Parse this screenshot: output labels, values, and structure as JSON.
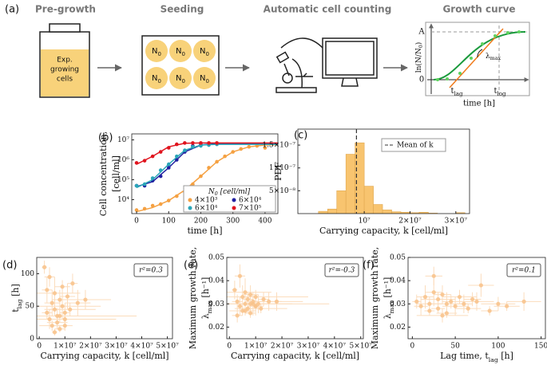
{
  "diagram": {
    "label": "(a)",
    "steps": [
      "Pre-growth",
      "Seeding",
      "Automatic cell counting",
      "Growth curve"
    ],
    "bottle_text": [
      "Exp.",
      "growing",
      "cells"
    ],
    "wells": [
      [
        "N",
        "0"
      ],
      [
        "N",
        "0"
      ],
      [
        "N",
        "0"
      ],
      [
        "N",
        "0"
      ],
      [
        "N",
        "0"
      ],
      [
        "N",
        "0"
      ]
    ],
    "curve": {
      "ylabel": [
        "ln(N/N",
        "0",
        ")"
      ],
      "xlabel": "time [h]",
      "top": "A",
      "zero": "0",
      "t_lag": [
        "t",
        "lag"
      ],
      "t_log": [
        "t",
        "log"
      ],
      "slope": [
        "λ",
        "max"
      ]
    }
  },
  "chart_data": [
    {
      "type": "line",
      "label": "(b)",
      "xlabel": "time [h]",
      "ylabel": [
        "Cell concentration,",
        "[cell/ml]"
      ],
      "xlim": [
        -15,
        440
      ],
      "xticks": [
        0,
        100,
        200,
        300,
        400
      ],
      "ylog": true,
      "ylim": [
        2000,
        20000000
      ],
      "yticks": [
        {
          "value": 10000,
          "label": "10⁴"
        },
        {
          "value": 100000,
          "label": "10⁵"
        },
        {
          "value": 1000000,
          "label": "10⁶"
        },
        {
          "value": 10000000,
          "label": "10⁷"
        }
      ],
      "legend_title": [
        "N",
        "0",
        " [cell/ml]"
      ],
      "fit_x": [
        0,
        50,
        100,
        150,
        200,
        250,
        300,
        350,
        400,
        450
      ],
      "series": [
        {
          "name": "4×10³",
          "color": "#f5a142",
          "x": [
            0,
            25,
            50,
            75,
            100,
            125,
            150,
            175,
            200,
            225,
            250,
            275,
            300,
            325,
            350,
            375,
            400
          ],
          "values": [
            3000,
            3500,
            5000,
            6000,
            9000,
            15000,
            25000,
            60000,
            150000,
            400000,
            800000,
            1500000,
            2500000,
            3500000,
            4500000,
            5000000,
            4000000
          ],
          "fit": [
            2500,
            4000,
            9000,
            30000,
            150000,
            800000,
            2500000,
            4500000,
            5500000,
            5800000
          ]
        },
        {
          "name": "6×10⁴",
          "color": "#1f1fa0",
          "x": [
            0,
            25,
            50,
            75,
            100,
            125,
            150,
            175,
            200
          ],
          "values": [
            50000,
            50000,
            90000,
            150000,
            400000,
            1000000,
            2500000,
            5000000,
            6000000
          ],
          "fit": [
            45000,
            80000,
            400000,
            2500000,
            5500000,
            6500000,
            6500000,
            6500000,
            6500000,
            6500000
          ]
        },
        {
          "name": "6×10⁴",
          "color": "#2aa6b8",
          "x": [
            0,
            25,
            50,
            75,
            100,
            125,
            150,
            175,
            200,
            225,
            250
          ],
          "values": [
            50000,
            60000,
            120000,
            300000,
            600000,
            1500000,
            3000000,
            4500000,
            5000000,
            5500000,
            6000000
          ],
          "fit": [
            40000,
            100000,
            600000,
            3000000,
            5500000,
            6000000,
            6000000,
            6000000,
            6000000,
            6000000
          ]
        },
        {
          "name": "7×10⁵",
          "color": "#e0141e",
          "x": [
            0,
            25,
            50,
            75,
            100,
            125,
            150,
            175,
            200,
            225,
            250
          ],
          "values": [
            700000,
            900000,
            1500000,
            2500000,
            4000000,
            6000000,
            7000000,
            7000000,
            7000000,
            7000000,
            7000000
          ],
          "fit": [
            600000,
            1500000,
            4500000,
            6800000,
            7000000,
            7000000,
            7000000,
            7000000,
            7000000,
            7000000
          ]
        }
      ]
    },
    {
      "type": "histogram",
      "label": "(c)",
      "xlabel": "Carrying capacity, k [cell/ml]",
      "ylabel": [
        "PDF"
      ],
      "xlim": [
        -4500000,
        33000000
      ],
      "xticks": [
        {
          "value": 10000000,
          "label": "10⁷"
        },
        {
          "value": 20000000,
          "label": "2×10⁷"
        },
        {
          "value": 30000000,
          "label": "3×10⁷"
        }
      ],
      "ylim": [
        0,
        1.85e-07
      ],
      "yticks": [
        {
          "value": 5e-08,
          "label": "5×10⁻⁸"
        },
        {
          "value": 1e-07,
          "label": "1×10⁻⁷"
        },
        {
          "value": 1.5e-07,
          "label": "1.5×10⁻⁷"
        }
      ],
      "bins": [
        0,
        2000000,
        4000000,
        6000000,
        8000000,
        10000000,
        12000000,
        14000000,
        16000000,
        18000000,
        20000000,
        22000000,
        24000000,
        26000000,
        28000000,
        30000000,
        32000000
      ],
      "counts": [
        5e-09,
        1e-08,
        5e-08,
        1.3e-07,
        1.55e-07,
        6e-08,
        2e-08,
        8e-09,
        4e-09,
        3e-09,
        2e-09,
        3e-09,
        1e-09,
        0,
        0,
        2e-09
      ],
      "color": "#f8c46f",
      "mean": 8300000,
      "mean_label": "Mean of k"
    },
    {
      "type": "scatter",
      "label": "(d)",
      "xlabel": "Carrying capacity, k [cell/ml]",
      "ylabel": [
        [
          "t",
          "lag",
          " [h]"
        ]
      ],
      "annotation": "r²=0.3",
      "xlim": [
        -1000000,
        52000000
      ],
      "xticks": [
        0,
        {
          "value": 10000000,
          "label": "1×10⁷"
        },
        {
          "value": 20000000,
          "label": "2×10⁷"
        },
        {
          "value": 30000000,
          "label": "3×10⁷"
        },
        {
          "value": 40000000,
          "label": "4×10⁷"
        },
        {
          "value": 50000000,
          "label": "5×10⁷"
        }
      ],
      "ylim": [
        0,
        125
      ],
      "yticks": [
        0,
        50,
        100
      ],
      "color": "#f8c28a",
      "errcolor": "#fbdcbc",
      "x": [
        3000000,
        4000000,
        5000000,
        5000000,
        6000000,
        6000000,
        7000000,
        7000000,
        8000000,
        8000000,
        9000000,
        9000000,
        10000000,
        10000000,
        11000000,
        12000000,
        13000000,
        15000000,
        4000000,
        6000000,
        8000000,
        10000000,
        2000000,
        3000000,
        18000000
      ],
      "values": [
        40,
        30,
        55,
        20,
        45,
        70,
        35,
        25,
        60,
        15,
        50,
        80,
        40,
        30,
        65,
        45,
        85,
        55,
        95,
        10,
        35,
        20,
        110,
        75,
        60
      ],
      "xerr": [
        2000000,
        1000000,
        3000000,
        5000000,
        2000000,
        10000000,
        2000000,
        4000000,
        3000000,
        2000000,
        15000000,
        3000000,
        2000000,
        20000000,
        3000000,
        10000000,
        2000000,
        5000000,
        2000000,
        1000000,
        30000000,
        3000000,
        1000000,
        2000000,
        10000000
      ],
      "yerr": [
        10,
        15,
        20,
        8,
        10,
        25,
        12,
        10,
        15,
        5,
        20,
        10,
        15,
        10,
        20,
        10,
        15,
        20,
        15,
        5,
        10,
        8,
        10,
        20,
        15
      ]
    },
    {
      "type": "scatter",
      "label": "(e)",
      "xlabel": "Carrying capacity, k [cell/ml]",
      "ylabel": [
        "Maximum growth rate,",
        [
          "λ",
          "max",
          " [h⁻¹]"
        ]
      ],
      "annotation": "r²=-0.3",
      "xlim": [
        -1000000,
        51000000
      ],
      "xticks": [
        0,
        {
          "value": 10000000,
          "label": "1×10⁷"
        },
        {
          "value": 20000000,
          "label": "2×10⁷"
        },
        {
          "value": 30000000,
          "label": "3×10⁷"
        },
        {
          "value": 40000000,
          "label": "4×10⁷"
        },
        {
          "value": 50000000,
          "label": "5×10⁷"
        }
      ],
      "ylim": [
        0.015,
        0.05
      ],
      "yticks": [
        0.02,
        0.03,
        0.04,
        0.05
      ],
      "color": "#f8c28a",
      "errcolor": "#fbdcbc",
      "x": [
        3000000,
        4000000,
        5000000,
        5000000,
        6000000,
        6000000,
        7000000,
        7000000,
        8000000,
        8000000,
        9000000,
        9000000,
        10000000,
        10000000,
        11000000,
        12000000,
        13000000,
        15000000,
        4000000,
        6000000,
        8000000,
        10000000,
        2000000,
        3000000,
        18000000
      ],
      "values": [
        0.031,
        0.029,
        0.033,
        0.027,
        0.03,
        0.035,
        0.032,
        0.028,
        0.034,
        0.026,
        0.03,
        0.031,
        0.029,
        0.033,
        0.03,
        0.028,
        0.032,
        0.031,
        0.042,
        0.027,
        0.03,
        0.029,
        0.036,
        0.025,
        0.031
      ],
      "xerr": [
        2000000,
        1000000,
        3000000,
        5000000,
        2000000,
        10000000,
        2000000,
        4000000,
        3000000,
        2000000,
        15000000,
        3000000,
        2000000,
        20000000,
        3000000,
        10000000,
        2000000,
        5000000,
        2000000,
        1000000,
        30000000,
        3000000,
        1000000,
        2000000,
        10000000
      ],
      "yerr": [
        0.003,
        0.004,
        0.005,
        0.002,
        0.003,
        0.006,
        0.003,
        0.002,
        0.004,
        0.002,
        0.005,
        0.003,
        0.004,
        0.003,
        0.004,
        0.002,
        0.003,
        0.004,
        0.005,
        0.002,
        0.003,
        0.002,
        0.004,
        0.003,
        0.004
      ]
    },
    {
      "type": "scatter",
      "label": "(f)",
      "xlabel": [
        "Lag time, t",
        "lag",
        " [h]"
      ],
      "ylabel": [
        "Maximum growth rate,",
        [
          "λ",
          "max",
          " [h⁻¹]"
        ]
      ],
      "annotation": "r²=0.1",
      "xlim": [
        -5,
        155
      ],
      "xticks": [
        0,
        50,
        100,
        150
      ],
      "ylim": [
        0.015,
        0.05
      ],
      "yticks": [
        0.02,
        0.03,
        0.04,
        0.05
      ],
      "color": "#f8c28a",
      "errcolor": "#fbdcbc",
      "x": [
        5,
        10,
        15,
        20,
        20,
        25,
        30,
        30,
        35,
        40,
        40,
        45,
        50,
        55,
        60,
        65,
        70,
        75,
        80,
        90,
        100,
        110,
        25,
        35,
        130
      ],
      "values": [
        0.031,
        0.029,
        0.033,
        0.027,
        0.03,
        0.035,
        0.032,
        0.028,
        0.034,
        0.026,
        0.03,
        0.031,
        0.029,
        0.033,
        0.03,
        0.028,
        0.032,
        0.031,
        0.038,
        0.027,
        0.03,
        0.029,
        0.042,
        0.025,
        0.031
      ],
      "xerr": [
        5,
        8,
        10,
        6,
        15,
        10,
        20,
        8,
        10,
        12,
        25,
        10,
        15,
        20,
        10,
        15,
        10,
        20,
        15,
        10,
        20,
        15,
        10,
        30,
        20
      ],
      "yerr": [
        0.003,
        0.004,
        0.005,
        0.002,
        0.003,
        0.006,
        0.003,
        0.002,
        0.004,
        0.002,
        0.005,
        0.003,
        0.004,
        0.003,
        0.004,
        0.002,
        0.003,
        0.004,
        0.005,
        0.002,
        0.003,
        0.002,
        0.004,
        0.003,
        0.004
      ]
    }
  ]
}
